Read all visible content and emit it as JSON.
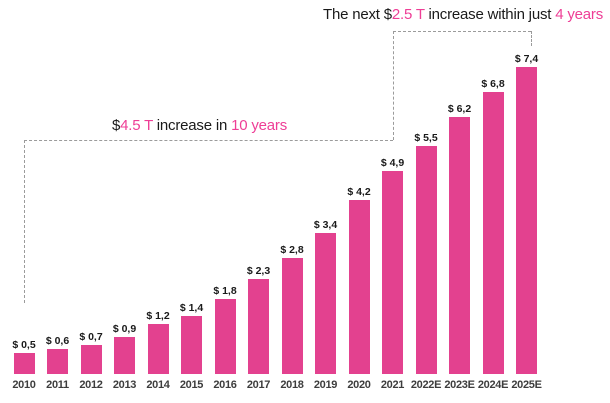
{
  "chart_data": {
    "type": "bar",
    "title": "",
    "xlabel": "",
    "ylabel": "",
    "categories": [
      "2010",
      "2011",
      "2012",
      "2013",
      "2014",
      "2015",
      "2016",
      "2017",
      "2018",
      "2019",
      "2020",
      "2021",
      "2022E",
      "2023E",
      "2024E",
      "2025E"
    ],
    "values": [
      0.5,
      0.6,
      0.7,
      0.9,
      1.2,
      1.4,
      1.8,
      2.3,
      2.8,
      3.4,
      4.2,
      4.9,
      5.5,
      6.2,
      6.8,
      7.4
    ],
    "value_labels": [
      "$ 0,5",
      "$ 0,6",
      "$ 0,7",
      "$ 0,9",
      "$ 1,2",
      "$ 1,4",
      "$ 1,8",
      "$ 2,3",
      "$ 2,8",
      "$ 3,4",
      "$ 4,2",
      "$ 4,9",
      "$ 5,5",
      "$ 6,2",
      "$ 6,8",
      "$ 7,4"
    ],
    "ylim": [
      0,
      7.4
    ],
    "grid": false,
    "legend": false,
    "axis_lines": false,
    "annotations": [
      {
        "name": "ten-year-increase",
        "segments": [
          {
            "text": "$",
            "highlight": false
          },
          {
            "text": "4.5 T",
            "highlight": true
          },
          {
            "text": " increase in ",
            "highlight": false
          },
          {
            "text": "10 years",
            "highlight": true
          }
        ]
      },
      {
        "name": "four-year-increase",
        "segments": [
          {
            "text": "The next $",
            "highlight": false
          },
          {
            "text": "2.5 T",
            "highlight": true
          },
          {
            "text": " increase within just ",
            "highlight": false
          },
          {
            "text": "4 years",
            "highlight": true
          }
        ]
      }
    ]
  },
  "colors": {
    "bar": "#E3418F",
    "highlight_text": "#EE3E96",
    "value_label": "#1A1A1A",
    "axis_label": "#3D3D3D",
    "dashed_line": "#9B9B9B",
    "background": "#FFFFFF"
  }
}
